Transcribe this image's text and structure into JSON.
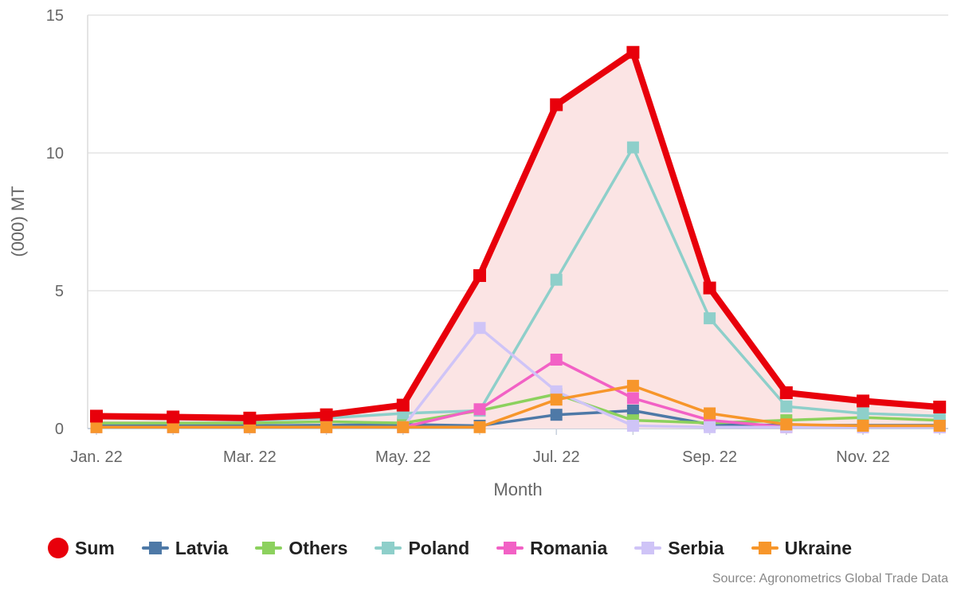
{
  "chart_data": {
    "type": "line",
    "xlabel": "Month",
    "ylabel": "(000) MT",
    "ylim": [
      0,
      15
    ],
    "yticks": [
      0,
      5,
      10,
      15
    ],
    "x": [
      "Jan. 22",
      "Feb. 22",
      "Mar. 22",
      "Apr. 22",
      "May. 22",
      "Jun. 22",
      "Jul. 22",
      "Aug. 22",
      "Sep. 22",
      "Oct. 22",
      "Nov. 22",
      "Dec. 22"
    ],
    "xtick_labels": [
      "Jan. 22",
      "",
      "Mar. 22",
      "",
      "May. 22",
      "",
      "Jul. 22",
      "",
      "Sep. 22",
      "",
      "Nov. 22",
      ""
    ],
    "grid": "horizontal",
    "legend_position": "bottom-left",
    "series": [
      {
        "name": "Sum",
        "color": "#e8000b",
        "area": true,
        "area_color": "#fbe4e4",
        "values": [
          0.45,
          0.42,
          0.38,
          0.5,
          0.85,
          5.55,
          11.75,
          13.65,
          5.1,
          1.3,
          1.0,
          0.78
        ]
      },
      {
        "name": "Latvia",
        "color": "#4e79a7",
        "values": [
          0.1,
          0.1,
          0.1,
          0.12,
          0.15,
          0.1,
          0.5,
          0.65,
          0.15,
          0.12,
          0.12,
          0.12
        ]
      },
      {
        "name": "Others",
        "color": "#8cd15e",
        "values": [
          0.2,
          0.2,
          0.2,
          0.25,
          0.2,
          0.65,
          1.25,
          0.3,
          0.2,
          0.3,
          0.4,
          0.3
        ]
      },
      {
        "name": "Poland",
        "color": "#8ecfca",
        "values": [
          0.38,
          0.35,
          0.3,
          0.38,
          0.55,
          0.65,
          5.4,
          10.2,
          4.0,
          0.8,
          0.55,
          0.45
        ]
      },
      {
        "name": "Romania",
        "color": "#f261c5",
        "values": [
          0.05,
          0.05,
          0.05,
          0.05,
          0.05,
          0.7,
          2.5,
          1.1,
          0.3,
          0.05,
          0.05,
          0.05
        ]
      },
      {
        "name": "Serbia",
        "color": "#cfc4f7",
        "values": [
          0.05,
          0.05,
          0.05,
          0.05,
          0.05,
          3.65,
          1.35,
          0.1,
          0.05,
          0.05,
          0.05,
          0.05
        ]
      },
      {
        "name": "Ukraine",
        "color": "#f7962b",
        "values": [
          0.05,
          0.05,
          0.05,
          0.05,
          0.05,
          0.05,
          1.05,
          1.55,
          0.55,
          0.15,
          0.1,
          0.1
        ]
      }
    ]
  },
  "legend": [
    {
      "label": "Sum",
      "color": "#e8000b",
      "symbol": "circle"
    },
    {
      "label": "Latvia",
      "color": "#4e79a7",
      "symbol": "line-square"
    },
    {
      "label": "Others",
      "color": "#8cd15e",
      "symbol": "line-square"
    },
    {
      "label": "Poland",
      "color": "#8ecfca",
      "symbol": "line-square"
    },
    {
      "label": "Romania",
      "color": "#f261c5",
      "symbol": "line-square"
    },
    {
      "label": "Serbia",
      "color": "#cfc4f7",
      "symbol": "line-square"
    },
    {
      "label": "Ukraine",
      "color": "#f7962b",
      "symbol": "line-square"
    }
  ],
  "source": "Source: Agronometrics Global Trade Data"
}
